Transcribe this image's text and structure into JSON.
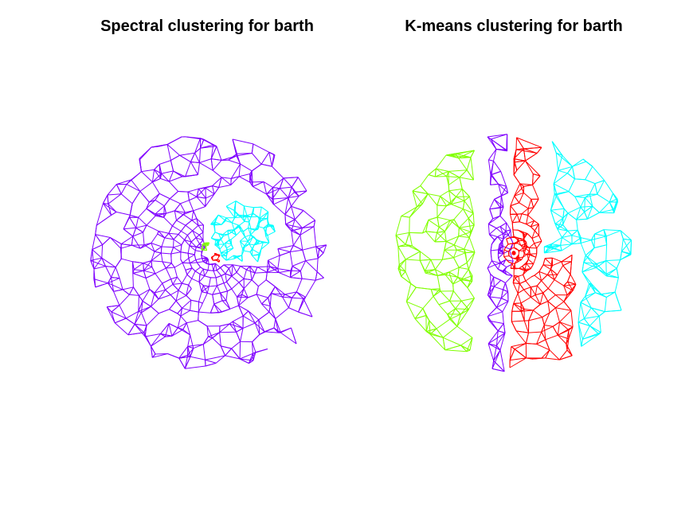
{
  "figure": {
    "left_title": "Spectral clustering for barth",
    "right_title": "K-means clustering for barth"
  },
  "colors": {
    "purple": "#7f00ff",
    "cyan": "#00ffff",
    "green": "#80ff00",
    "red": "#ff0000",
    "background": "#ffffff"
  }
}
